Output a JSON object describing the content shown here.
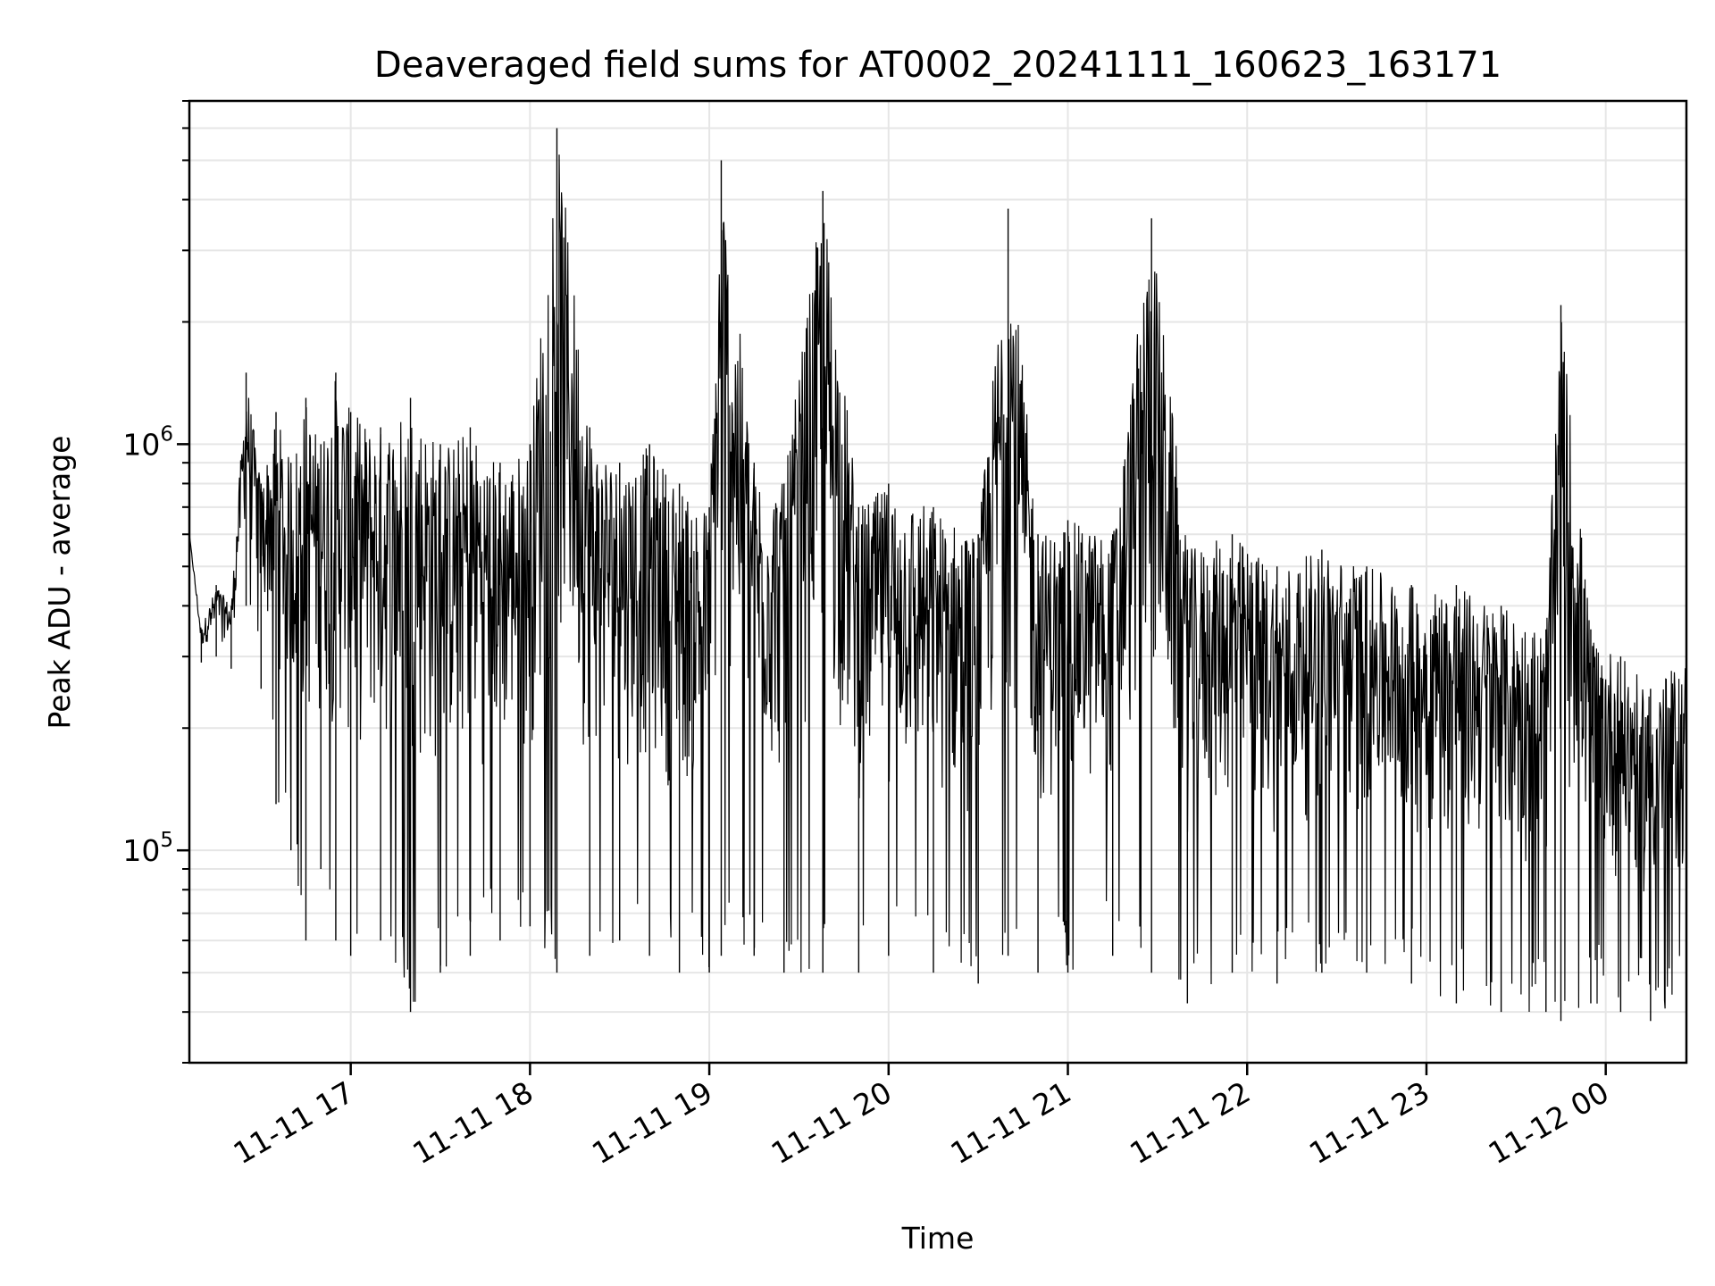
{
  "chart_data": {
    "type": "line",
    "title": "Deaveraged field sums for AT0002_20241111_160623_163171",
    "xlabel": "Time",
    "ylabel": "Peak ADU - average",
    "y_scale": "log",
    "xlim": [
      "2024-11-11 16:06",
      "2024-11-12 00:27"
    ],
    "ylim": [
      30000,
      7000000
    ],
    "x_ticks": [
      "11-11 17",
      "11-11 18",
      "11-11 19",
      "11-11 20",
      "11-11 21",
      "11-11 22",
      "11-11 23",
      "11-12 00"
    ],
    "y_ticks": [
      {
        "base": "10",
        "exp": "5",
        "value": 100000
      },
      {
        "base": "10",
        "exp": "6",
        "value": 1000000
      }
    ],
    "grid": true,
    "line_color": "#000000",
    "series": [
      {
        "x": [
          "2024-11-11 16:06",
          "2024-11-11 16:10",
          "2024-11-11 16:15",
          "2024-11-11 16:20",
          "2024-11-11 16:25",
          "2024-11-11 16:30",
          "2024-11-11 16:35",
          "2024-11-11 16:40",
          "2024-11-11 16:45",
          "2024-11-11 16:50",
          "2024-11-11 16:55",
          "2024-11-11 17:00",
          "2024-11-11 17:10",
          "2024-11-11 17:20",
          "2024-11-11 17:30",
          "2024-11-11 17:40",
          "2024-11-11 17:50",
          "2024-11-11 18:00",
          "2024-11-11 18:09",
          "2024-11-11 18:20",
          "2024-11-11 18:30",
          "2024-11-11 18:40",
          "2024-11-11 18:50",
          "2024-11-11 19:00",
          "2024-11-11 19:04",
          "2024-11-11 19:15",
          "2024-11-11 19:25",
          "2024-11-11 19:38",
          "2024-11-11 19:50",
          "2024-11-11 20:00",
          "2024-11-11 20:15",
          "2024-11-11 20:30",
          "2024-11-11 20:40",
          "2024-11-11 20:50",
          "2024-11-11 21:00",
          "2024-11-11 21:15",
          "2024-11-11 21:28",
          "2024-11-11 21:40",
          "2024-11-11 21:55",
          "2024-11-11 22:10",
          "2024-11-11 22:25",
          "2024-11-11 22:40",
          "2024-11-11 22:55",
          "2024-11-11 23:10",
          "2024-11-11 23:25",
          "2024-11-11 23:40",
          "2024-11-11 23:45",
          "2024-11-11 23:55",
          "2024-11-12 00:05",
          "2024-11-12 00:15",
          "2024-11-12 00:27"
        ],
        "y": [
          600000,
          350000,
          450000,
          400000,
          1500000,
          800000,
          1200000,
          900000,
          1300000,
          1000000,
          1500000,
          1200000,
          1100000,
          1300000,
          1000000,
          1100000,
          900000,
          1000000,
          6000000,
          1100000,
          900000,
          1000000,
          800000,
          700000,
          5000000,
          900000,
          800000,
          4200000,
          700000,
          800000,
          700000,
          600000,
          3800000,
          600000,
          650000,
          600000,
          3600000,
          550000,
          600000,
          500000,
          550000,
          500000,
          450000,
          450000,
          400000,
          350000,
          2200000,
          350000,
          300000,
          250000,
          300000
        ],
        "y_min": [
          600000,
          290000,
          300000,
          280000,
          400000,
          250000,
          130000,
          100000,
          60000,
          90000,
          60000,
          55000,
          60000,
          40000,
          50000,
          55000,
          60000,
          65000,
          50000,
          55000,
          60000,
          55000,
          50000,
          50000,
          55000,
          55000,
          50000,
          50000,
          50000,
          55000,
          50000,
          47000,
          55000,
          50000,
          50000,
          55000,
          50000,
          42000,
          50000,
          47000,
          50000,
          50000,
          47000,
          42000,
          40000,
          40000,
          38000,
          42000,
          40000,
          38000,
          40000
        ]
      }
    ]
  }
}
